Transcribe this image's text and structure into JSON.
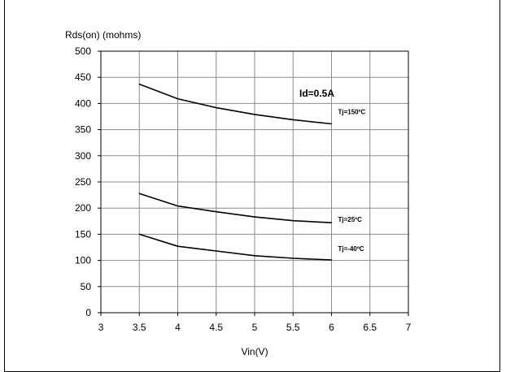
{
  "chart_data": {
    "type": "line",
    "title": "",
    "xlabel": "Vin(V)",
    "ylabel": "Rds(on) (mohms)",
    "xlim": [
      3,
      7
    ],
    "ylim": [
      0,
      500
    ],
    "x_ticks": [
      3,
      3.5,
      4,
      4.5,
      5,
      5.5,
      6,
      6.5,
      7
    ],
    "x_tick_labels": [
      "3",
      "3.5",
      "4",
      "4.5",
      "5",
      "5.5",
      "6",
      "6.5",
      "7"
    ],
    "y_ticks": [
      0,
      50,
      100,
      150,
      200,
      250,
      300,
      350,
      400,
      450,
      500
    ],
    "y_tick_labels": [
      "0",
      "50",
      "100",
      "150",
      "200",
      "250",
      "300",
      "350",
      "400",
      "450",
      "500"
    ],
    "grid": true,
    "line_color": "#000000",
    "annotation": "Id=0.5A",
    "series": [
      {
        "name": "Tj=150ºC",
        "x": [
          3.5,
          4,
          4.5,
          5,
          5.5,
          6
        ],
        "y": [
          437,
          409,
          392,
          379,
          369,
          361
        ]
      },
      {
        "name": "Tj=25ºC",
        "x": [
          3.5,
          4,
          4.5,
          5,
          5.5,
          6
        ],
        "y": [
          228,
          204,
          193,
          183,
          176,
          172
        ]
      },
      {
        "name": "Tj=-40ºC",
        "x": [
          3.5,
          4,
          4.5,
          5,
          5.5,
          6
        ],
        "y": [
          150,
          127,
          118,
          109,
          104,
          101
        ]
      }
    ]
  }
}
